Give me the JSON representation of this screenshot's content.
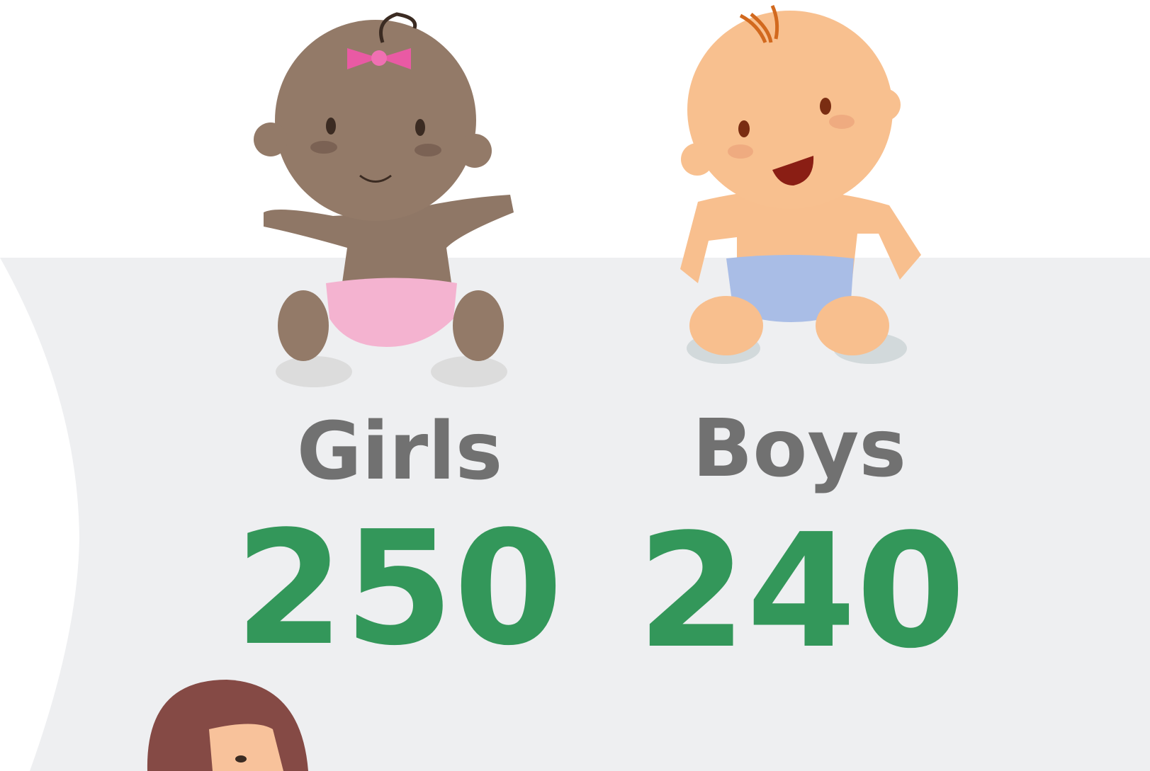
{
  "items": [
    {
      "label": "Girls",
      "value": 250
    },
    {
      "label": "Boys",
      "value": 240
    }
  ]
}
